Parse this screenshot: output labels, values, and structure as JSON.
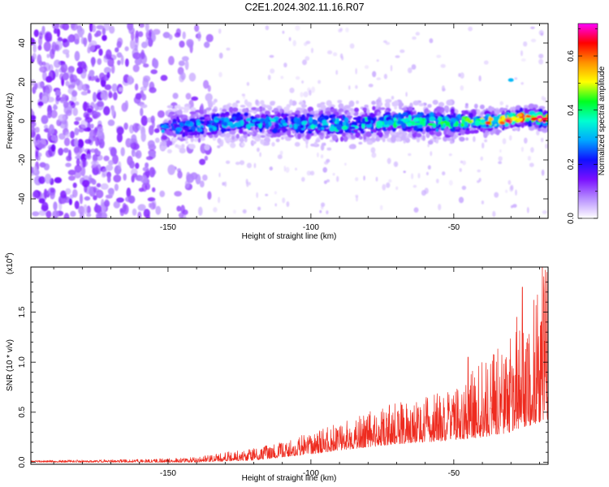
{
  "figure_title": "C2E1.2024.302.11.16.R07",
  "chart_data": [
    {
      "type": "heatmap",
      "title": "C2E1.2024.302.11.16.R07",
      "xlabel": "Height of straight line (km)",
      "ylabel": "Frequency (Hz)",
      "xlim": [
        -198,
        -17
      ],
      "ylim": [
        -50,
        50
      ],
      "x_ticks": [
        "-150",
        "-100",
        "-50"
      ],
      "y_ticks": [
        "-40",
        "-20",
        "0",
        "20",
        "40"
      ],
      "colorbar": {
        "label": "Normalized spectral amplitude",
        "range": [
          0,
          0.72
        ],
        "ticks": [
          "0.0",
          "0.2",
          "0.4",
          "0.6"
        ],
        "colors": [
          "#ffffff",
          "#b890ff",
          "#7a10ff",
          "#1010ff",
          "#00a8ff",
          "#00ffd0",
          "#00ff20",
          "#ffff00",
          "#ff9000",
          "#ff0000",
          "#ff00ff"
        ]
      },
      "ridge": {
        "x": [
          -150,
          -130,
          -110,
          -90,
          -70,
          -50,
          -35,
          -25,
          -17
        ],
        "center_hz": [
          -4,
          -1,
          -1,
          -2,
          0,
          -1,
          0,
          2,
          1
        ],
        "half_width_hz": [
          8,
          8,
          7,
          8,
          7,
          7,
          4,
          4,
          4
        ],
        "peak_amplitude": [
          0.3,
          0.33,
          0.35,
          0.38,
          0.4,
          0.45,
          0.55,
          0.65,
          0.7
        ]
      },
      "noise_region": {
        "x_range": [
          -198,
          -135
        ],
        "frequency_range": [
          -50,
          50
        ],
        "amplitude": [
          0.05,
          0.15
        ]
      }
    },
    {
      "type": "line",
      "xlabel": "Height of straight line (km)",
      "ylabel": "SNR (10 * v/v)",
      "y_multiplier": "(x10",
      "y_multiplier_exp": "4",
      "y_multiplier_close": ")",
      "xlim": [
        -198,
        -17
      ],
      "ylim": [
        -0.02,
        1.95
      ],
      "x_ticks": [
        "-150",
        "-100",
        "-50"
      ],
      "y_ticks": [
        "0.0",
        "0.5",
        "1.0",
        "1.5"
      ],
      "color": "#ee2b1f",
      "envelope": {
        "x": [
          -198,
          -160,
          -140,
          -130,
          -120,
          -110,
          -100,
          -90,
          -80,
          -70,
          -60,
          -50,
          -40,
          -30,
          -25,
          -20,
          -17
        ],
        "baseline": [
          0,
          0,
          0,
          0.01,
          0.02,
          0.05,
          0.08,
          0.12,
          0.15,
          0.18,
          0.2,
          0.22,
          0.25,
          0.3,
          0.35,
          0.4,
          0.4
        ],
        "max": [
          0.02,
          0.03,
          0.05,
          0.1,
          0.15,
          0.2,
          0.3,
          0.4,
          0.5,
          0.6,
          0.65,
          0.75,
          1.0,
          1.25,
          1.4,
          1.8,
          1.95
        ]
      },
      "peaks": [
        {
          "x": -45,
          "y": 1.05
        },
        {
          "x": -28,
          "y": 1.45
        },
        {
          "x": -26,
          "y": 1.75
        },
        {
          "x": -22,
          "y": 1.62
        },
        {
          "x": -19,
          "y": 1.95
        },
        {
          "x": -18,
          "y": 1.92
        }
      ]
    }
  ]
}
